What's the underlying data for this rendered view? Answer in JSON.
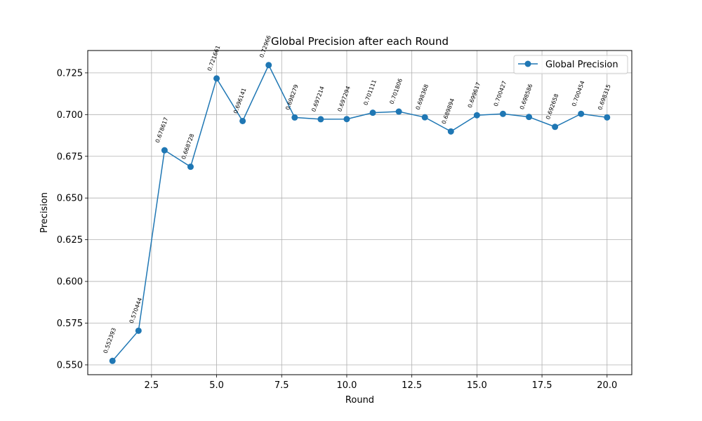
{
  "chart_data": {
    "type": "line",
    "title": "Global Precision after each Round",
    "xlabel": "Round",
    "ylabel": "Precision",
    "xlim": [
      0.05,
      20.95
    ],
    "ylim": [
      0.5441,
      0.7384
    ],
    "xticks": [
      2.5,
      5.0,
      7.5,
      10.0,
      12.5,
      15.0,
      17.5,
      20.0
    ],
    "xtick_labels": [
      "2.5",
      "5.0",
      "7.5",
      "10.0",
      "12.5",
      "15.0",
      "17.5",
      "20.0"
    ],
    "yticks": [
      0.55,
      0.575,
      0.6,
      0.625,
      0.65,
      0.675,
      0.7,
      0.725
    ],
    "ytick_labels": [
      "0.550",
      "0.575",
      "0.600",
      "0.625",
      "0.650",
      "0.675",
      "0.700",
      "0.725"
    ],
    "grid": true,
    "legend_position": "top-right",
    "colors": {
      "series": "#1f77b4",
      "grid": "#b0b0b0"
    },
    "series": [
      {
        "name": "Global Precision",
        "x": [
          1,
          2,
          3,
          4,
          5,
          6,
          7,
          8,
          9,
          10,
          11,
          12,
          13,
          14,
          15,
          16,
          17,
          18,
          19,
          20
        ],
        "y": [
          0.552393,
          0.570444,
          0.678617,
          0.668728,
          0.721661,
          0.696141,
          0.72966,
          0.698279,
          0.697214,
          0.697294,
          0.701111,
          0.701806,
          0.698368,
          0.689894,
          0.699617,
          0.700427,
          0.698586,
          0.692658,
          0.700454,
          0.698315
        ],
        "labels": [
          "0.552393",
          "0.570444",
          "0.678617",
          "0.668728",
          "0.721661",
          "0.696141",
          "0.72966",
          "0.698279",
          "0.697214",
          "0.697294",
          "0.701111",
          "0.701806",
          "0.698368",
          "0.689894",
          "0.699617",
          "0.700427",
          "0.698586",
          "0.692658",
          "0.700454",
          "0.698315"
        ]
      }
    ]
  }
}
